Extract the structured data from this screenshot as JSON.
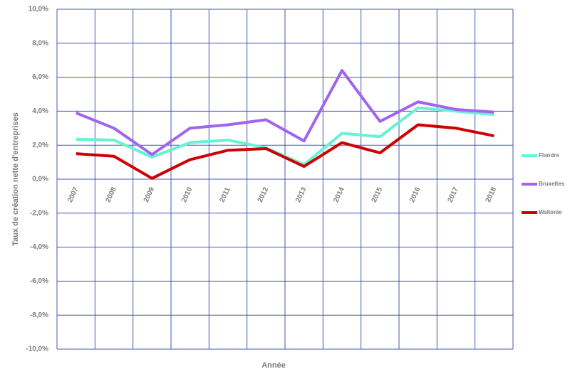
{
  "chart_data": {
    "type": "line",
    "x_label": "Année",
    "y_label": "Taux de création nette d'entreprises",
    "categories": [
      "2007",
      "2008",
      "2009",
      "2010",
      "2011",
      "2012",
      "2013",
      "2014",
      "2015",
      "2016",
      "2017",
      "2018"
    ],
    "series": [
      {
        "name": "Flandre",
        "color": "#66f2d4",
        "values": [
          2.35,
          2.3,
          1.3,
          2.15,
          2.3,
          1.85,
          0.85,
          2.7,
          2.5,
          4.2,
          4.0,
          3.8
        ]
      },
      {
        "name": "Bruxelles",
        "color": "#a064ee",
        "values": [
          3.9,
          3.0,
          1.45,
          3.0,
          3.2,
          3.5,
          2.25,
          6.4,
          3.4,
          4.55,
          4.1,
          3.95
        ]
      },
      {
        "name": "Wallonie",
        "color": "#cc0000",
        "values": [
          1.5,
          1.35,
          0.05,
          1.15,
          1.7,
          1.8,
          0.75,
          2.15,
          1.55,
          3.2,
          3.0,
          2.55
        ]
      }
    ],
    "ylim": [
      -10,
      10
    ],
    "yticks": [
      {
        "value": -10,
        "label": "-10,0%"
      },
      {
        "value": -8,
        "label": "-8,0%"
      },
      {
        "value": -6,
        "label": "-6,0%"
      },
      {
        "value": -4,
        "label": "-4,0%"
      },
      {
        "value": -2,
        "label": "-2,0%"
      },
      {
        "value": 0,
        "label": "0,0%"
      },
      {
        "value": 2,
        "label": "2,0%"
      },
      {
        "value": 4,
        "label": "4,0%"
      },
      {
        "value": 6,
        "label": "6,0%"
      },
      {
        "value": 8,
        "label": "8,0%"
      },
      {
        "value": 10,
        "label": "10,0%"
      }
    ],
    "grid": true,
    "legend": "right"
  }
}
